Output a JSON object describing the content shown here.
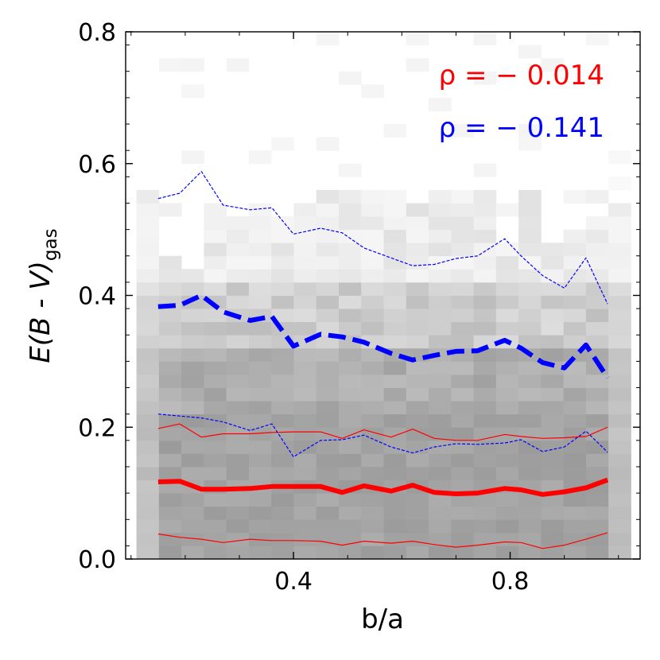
{
  "chart_data": {
    "type": "line",
    "title": "",
    "xlabel": "b/a",
    "ylabel": "E(B - V)",
    "ylabel_subscript": "gas",
    "xlim": [
      0.09,
      1.04
    ],
    "ylim": [
      0.0,
      0.8
    ],
    "xticks": [
      {
        "value": 0.4,
        "label": "0.4"
      },
      {
        "value": 0.8,
        "label": "0.8"
      }
    ],
    "yticks": [
      {
        "value": 0.0,
        "label": "0.0"
      },
      {
        "value": 0.2,
        "label": "0.2"
      },
      {
        "value": 0.4,
        "label": "0.4"
      },
      {
        "value": 0.6,
        "label": "0.6"
      },
      {
        "value": 0.8,
        "label": "0.8"
      }
    ],
    "annotations": [
      {
        "label": "ρ = − 0.014",
        "color": "#ff0000"
      },
      {
        "label": "ρ = − 0.141",
        "color": "#0000ff"
      }
    ],
    "x": [
      0.15,
      0.19,
      0.23,
      0.27,
      0.32,
      0.36,
      0.4,
      0.45,
      0.49,
      0.53,
      0.58,
      0.62,
      0.66,
      0.7,
      0.74,
      0.79,
      0.82,
      0.86,
      0.9,
      0.94,
      0.98
    ],
    "series": [
      {
        "name": "red median",
        "color": "#ff0000",
        "style": "solid",
        "weight": "thick",
        "values": [
          0.117,
          0.118,
          0.106,
          0.106,
          0.107,
          0.11,
          0.11,
          0.11,
          0.101,
          0.111,
          0.103,
          0.112,
          0.101,
          0.099,
          0.1,
          0.107,
          0.105,
          0.098,
          0.102,
          0.108,
          0.12
        ]
      },
      {
        "name": "red upper",
        "color": "#ff0000",
        "style": "solid",
        "weight": "thin",
        "values": [
          0.198,
          0.205,
          0.185,
          0.19,
          0.19,
          0.192,
          0.193,
          0.193,
          0.183,
          0.196,
          0.185,
          0.197,
          0.183,
          0.18,
          0.18,
          0.189,
          0.186,
          0.183,
          0.184,
          0.186,
          0.2
        ]
      },
      {
        "name": "red lower",
        "color": "#ff0000",
        "style": "solid",
        "weight": "thin",
        "values": [
          0.038,
          0.033,
          0.03,
          0.025,
          0.03,
          0.028,
          0.028,
          0.027,
          0.021,
          0.027,
          0.024,
          0.027,
          0.022,
          0.018,
          0.021,
          0.026,
          0.025,
          0.016,
          0.021,
          0.03,
          0.04
        ]
      },
      {
        "name": "blue median",
        "color": "#0000ff",
        "style": "dashed",
        "weight": "thick",
        "values": [
          0.383,
          0.385,
          0.4,
          0.375,
          0.362,
          0.368,
          0.323,
          0.341,
          0.337,
          0.329,
          0.312,
          0.302,
          0.309,
          0.315,
          0.316,
          0.332,
          0.32,
          0.298,
          0.29,
          0.325,
          0.275
        ]
      },
      {
        "name": "blue upper",
        "color": "#0000ff",
        "style": "dashed",
        "weight": "thin",
        "values": [
          0.547,
          0.555,
          0.588,
          0.537,
          0.53,
          0.533,
          0.493,
          0.502,
          0.495,
          0.472,
          0.457,
          0.445,
          0.447,
          0.456,
          0.46,
          0.486,
          0.46,
          0.43,
          0.411,
          0.457,
          0.387
        ]
      },
      {
        "name": "blue lower",
        "color": "#0000ff",
        "style": "dashed",
        "weight": "thin",
        "values": [
          0.22,
          0.217,
          0.214,
          0.208,
          0.195,
          0.205,
          0.155,
          0.18,
          0.181,
          0.188,
          0.17,
          0.161,
          0.17,
          0.175,
          0.174,
          0.176,
          0.181,
          0.163,
          0.17,
          0.194,
          0.162
        ]
      }
    ],
    "histogram": {
      "x_bins": 22,
      "y_bins": 40,
      "x_start": 0.11,
      "x_width": 0.0415,
      "y_start": 0.0,
      "y_width": 0.02
    }
  }
}
